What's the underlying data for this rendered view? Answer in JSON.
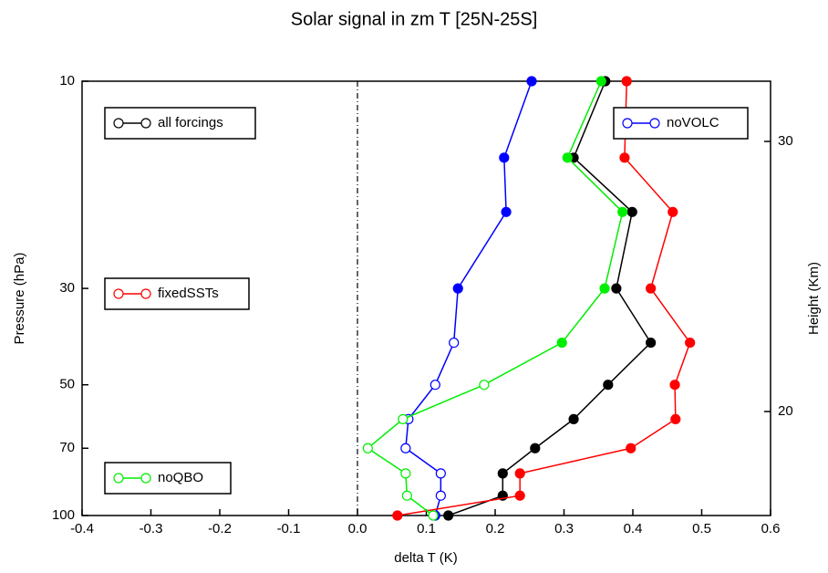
{
  "chart_data": {
    "type": "line",
    "title": "Solar signal in zm T [25N-25S]",
    "x_label": "delta T (K)",
    "y_label": "Pressure (hPa)",
    "y2_label": "Height (Km)",
    "y": [
      10,
      15,
      20,
      30,
      40,
      50,
      60,
      70,
      80,
      90,
      100
    ],
    "y_scale": "log",
    "xlim": [
      -0.4,
      0.6
    ],
    "xticks": [
      -0.4,
      -0.3,
      -0.2,
      -0.1,
      {
        "value": 0,
        "label": "0.0"
      },
      0.1,
      0.2,
      0.3,
      0.4,
      0.5,
      0.6
    ],
    "ylim": [
      10,
      100
    ],
    "yticks": [
      10,
      30,
      50,
      70,
      100
    ],
    "y2lim": [
      32.23,
      16.15
    ],
    "y2ticks": [
      20,
      30
    ],
    "vline": 0,
    "series": [
      {
        "name": "all forcings",
        "color": "#000000",
        "values": [
          0.36,
          0.314,
          0.399,
          0.376,
          0.426,
          0.364,
          0.314,
          0.258,
          0.211,
          0.211,
          0.132
        ],
        "filled": [
          true,
          true,
          true,
          true,
          true,
          true,
          true,
          true,
          true,
          true,
          true
        ]
      },
      {
        "name": "noVOLC",
        "color": "#0000ff",
        "values": [
          0.253,
          0.213,
          0.216,
          0.146,
          0.14,
          0.113,
          0.074,
          0.07,
          0.121,
          0.121,
          0.113
        ],
        "filled": [
          true,
          true,
          true,
          true,
          false,
          false,
          false,
          false,
          false,
          false,
          true
        ]
      },
      {
        "name": "fixedSSTs",
        "color": "#ff0000",
        "values": [
          0.391,
          0.388,
          0.458,
          0.426,
          0.483,
          0.461,
          0.462,
          0.397,
          0.236,
          0.236,
          0.058
        ],
        "filled": [
          true,
          true,
          true,
          true,
          true,
          true,
          true,
          true,
          true,
          true,
          true
        ]
      },
      {
        "name": "noQBO",
        "color": "#00ee00",
        "values": [
          0.354,
          0.305,
          0.385,
          0.359,
          0.297,
          0.184,
          0.066,
          0.015,
          0.07,
          0.072,
          0.11
        ],
        "filled": [
          true,
          true,
          true,
          true,
          true,
          false,
          false,
          false,
          false,
          false,
          false
        ]
      }
    ]
  }
}
